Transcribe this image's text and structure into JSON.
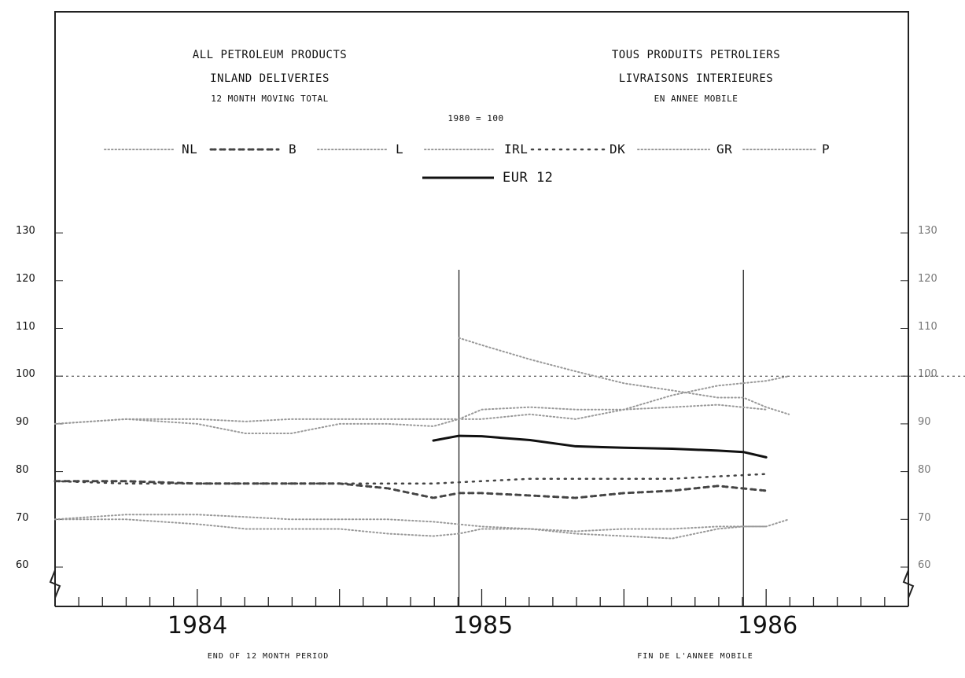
{
  "chart_data": {
    "type": "line",
    "title_en": [
      "ALL PETROLEUM PRODUCTS",
      "INLAND DELIVERIES"
    ],
    "subtitle_en": "12 MONTH MOVING TOTAL",
    "title_fr": [
      "TOUS PRODUITS PETROLIERS",
      "LIVRAISONS INTERIEURES"
    ],
    "subtitle_fr": "EN ANNEE MOBILE",
    "base_note": "1980 = 100",
    "xlabel_en": "END OF 12 MONTH PERIOD",
    "xlabel_fr": "FIN DE L'ANNEE MOBILE",
    "x_years": [
      "1984",
      "1985",
      "1986"
    ],
    "yticks": [
      60,
      70,
      80,
      90,
      100,
      110,
      120,
      130
    ],
    "ylim": [
      53,
      133
    ],
    "xlim": [
      1983.5,
      1986.5
    ],
    "reference_line": 100,
    "period_markers": [
      1984.92,
      1985.92
    ],
    "legend": [
      "NL",
      "B",
      "L",
      "IRL",
      "DK",
      "GR",
      "P",
      "EUR 12"
    ],
    "colors": {
      "eur12": "#111111",
      "dots": "#444444",
      "light": "#999999"
    },
    "series": [
      {
        "name": "EUR 12",
        "style": "solid",
        "x": [
          1984.83,
          1984.92,
          1985.0,
          1985.17,
          1985.33,
          1985.5,
          1985.67,
          1985.83,
          1985.92,
          1986.0
        ],
        "y": [
          86.5,
          87.5,
          87.4,
          86.6,
          85.3,
          85.0,
          84.8,
          84.4,
          84.1,
          83.0
        ]
      },
      {
        "name": "NL",
        "style": "light-dots",
        "x": [
          1983.5,
          1983.75,
          1984.0,
          1984.17,
          1984.33,
          1984.5,
          1984.67,
          1984.83,
          1985.0,
          1985.17,
          1985.33,
          1985.5,
          1985.67,
          1985.83,
          1986.0,
          1986.08
        ],
        "y": [
          90,
          91,
          91,
          90.5,
          91,
          91,
          91,
          91,
          91,
          92,
          91,
          93,
          96,
          98,
          99,
          100
        ]
      },
      {
        "name": "B",
        "style": "cross-dots",
        "x": [
          1983.5,
          1983.75,
          1984.0,
          1984.17,
          1984.33,
          1984.5,
          1984.67,
          1984.83,
          1984.92,
          1985.0,
          1985.17,
          1985.33,
          1985.5,
          1985.67,
          1985.83,
          1986.0
        ],
        "y": [
          78,
          78,
          77.5,
          77.5,
          77.5,
          77.5,
          76.5,
          74.5,
          75.5,
          75.5,
          75,
          74.5,
          75.5,
          76,
          77,
          76
        ]
      },
      {
        "name": "L",
        "style": "light-dots",
        "x": [
          1983.5,
          1983.75,
          1984.0,
          1984.17,
          1984.33,
          1984.5,
          1984.67,
          1984.83,
          1984.92,
          1985.0,
          1985.17,
          1985.33,
          1985.5,
          1985.67,
          1985.83,
          1986.0
        ],
        "y": [
          90,
          91,
          90,
          88,
          88,
          90,
          90,
          89.5,
          91,
          93,
          93.5,
          93,
          93,
          93.5,
          94,
          93
        ]
      },
      {
        "name": "IRL",
        "style": "light-dots",
        "x": [
          1984.92,
          1985.0,
          1985.17,
          1985.33,
          1985.5,
          1985.67,
          1985.83,
          1985.92,
          1986.0,
          1986.08
        ],
        "y": [
          108,
          106.5,
          103.5,
          101,
          98.5,
          97,
          95.5,
          95.5,
          93.5,
          92
        ]
      },
      {
        "name": "DK",
        "style": "dark-dots",
        "x": [
          1983.5,
          1983.75,
          1984.0,
          1984.17,
          1984.33,
          1984.5,
          1984.67,
          1984.83,
          1985.0,
          1985.17,
          1985.33,
          1985.5,
          1985.67,
          1985.83,
          1986.0
        ],
        "y": [
          78,
          77.5,
          77.5,
          77.5,
          77.5,
          77.5,
          77.5,
          77.5,
          78,
          78.5,
          78.5,
          78.5,
          78.5,
          79,
          79.5
        ]
      },
      {
        "name": "GR",
        "style": "light-dots",
        "x": [
          1983.5,
          1983.75,
          1984.0,
          1984.17,
          1984.33,
          1984.5,
          1984.67,
          1984.83,
          1985.0,
          1985.17,
          1985.33,
          1985.5,
          1985.67,
          1985.83,
          1986.0,
          1986.08
        ],
        "y": [
          70,
          71,
          71,
          70.5,
          70,
          70,
          70,
          69.5,
          68.5,
          68,
          67.5,
          68,
          68,
          68.5,
          68.5,
          70
        ]
      },
      {
        "name": "P",
        "style": "light-dots",
        "x": [
          1983.5,
          1983.75,
          1984.0,
          1984.17,
          1984.33,
          1984.5,
          1984.67,
          1984.83,
          1984.92,
          1985.0,
          1985.17,
          1985.33,
          1985.5,
          1985.67,
          1985.83,
          1985.92,
          1986.0
        ],
        "y": [
          70,
          70,
          69,
          68,
          68,
          68,
          67,
          66.5,
          67,
          68,
          68,
          67,
          66.5,
          66,
          68,
          68.5,
          68.5
        ]
      }
    ]
  }
}
